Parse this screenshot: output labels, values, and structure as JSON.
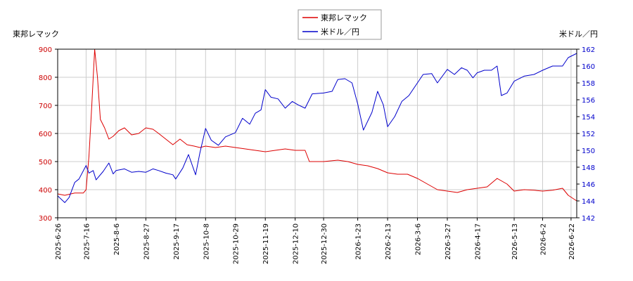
{
  "chart_data": {
    "type": "line",
    "legend_position": "top-center",
    "grid": true,
    "left_axis_label": "東邦レマック",
    "right_axis_label": "米ドル／円",
    "left_ylim": [
      300,
      900
    ],
    "right_ylim": [
      142,
      162
    ],
    "left_ticks": [
      "300",
      "400",
      "500",
      "600",
      "700",
      "800",
      "900"
    ],
    "right_ticks": [
      "142",
      "144",
      "146",
      "148",
      "150",
      "152",
      "154",
      "156",
      "158",
      "160",
      "162"
    ],
    "x_ticks": [
      "2025-6-26",
      "2025-7-16",
      "2025-8-6",
      "2025-8-27",
      "2025-9-17",
      "2025-10-8",
      "2025-10-29",
      "2025-11-19",
      "2025-12-10",
      "2025-12-30",
      "2026-1-23",
      "2026-2-13",
      "2026-3-6",
      "2026-3-27",
      "2026-4-17",
      "2026-5-13",
      "2026-6-2",
      "2026-6-22"
    ],
    "colors": {
      "stock": "#dd0000",
      "fx": "#0000cc",
      "grid": "#cccccc"
    },
    "series": [
      {
        "name": "東邦レマック",
        "axis": "left",
        "points": [
          [
            "2025-6-26",
            385
          ],
          [
            "2025-7-1",
            380
          ],
          [
            "2025-7-8",
            388
          ],
          [
            "2025-7-14",
            388
          ],
          [
            "2025-7-16",
            400
          ],
          [
            "2025-7-18",
            520
          ],
          [
            "2025-7-20",
            700
          ],
          [
            "2025-7-22",
            900
          ],
          [
            "2025-7-24",
            800
          ],
          [
            "2025-7-26",
            650
          ],
          [
            "2025-7-29",
            620
          ],
          [
            "2025-8-1",
            580
          ],
          [
            "2025-8-4",
            590
          ],
          [
            "2025-8-8",
            610
          ],
          [
            "2025-8-12",
            620
          ],
          [
            "2025-8-17",
            595
          ],
          [
            "2025-8-22",
            600
          ],
          [
            "2025-8-27",
            620
          ],
          [
            "2025-9-1",
            615
          ],
          [
            "2025-9-5",
            600
          ],
          [
            "2025-9-10",
            580
          ],
          [
            "2025-9-15",
            560
          ],
          [
            "2025-9-20",
            580
          ],
          [
            "2025-9-25",
            560
          ],
          [
            "2025-9-30",
            555
          ],
          [
            "2025-10-4",
            550
          ],
          [
            "2025-10-8",
            555
          ],
          [
            "2025-10-15",
            550
          ],
          [
            "2025-10-22",
            555
          ],
          [
            "2025-10-29",
            550
          ],
          [
            "2025-11-5",
            545
          ],
          [
            "2025-11-12",
            540
          ],
          [
            "2025-11-19",
            535
          ],
          [
            "2025-11-26",
            540
          ],
          [
            "2025-12-3",
            545
          ],
          [
            "2025-12-10",
            540
          ],
          [
            "2025-12-17",
            540
          ],
          [
            "2025-12-20",
            500
          ],
          [
            "2025-12-30",
            500
          ],
          [
            "2026-1-9",
            505
          ],
          [
            "2026-1-16",
            500
          ],
          [
            "2026-1-23",
            490
          ],
          [
            "2026-1-30",
            485
          ],
          [
            "2026-2-6",
            475
          ],
          [
            "2026-2-13",
            460
          ],
          [
            "2026-2-20",
            455
          ],
          [
            "2026-2-27",
            455
          ],
          [
            "2026-3-6",
            440
          ],
          [
            "2026-3-13",
            420
          ],
          [
            "2026-3-20",
            400
          ],
          [
            "2026-3-27",
            395
          ],
          [
            "2026-4-3",
            390
          ],
          [
            "2026-4-10",
            400
          ],
          [
            "2026-4-17",
            405
          ],
          [
            "2026-4-24",
            410
          ],
          [
            "2026-5-1",
            440
          ],
          [
            "2026-5-8",
            420
          ],
          [
            "2026-5-13",
            395
          ],
          [
            "2026-5-20",
            400
          ],
          [
            "2026-5-27",
            398
          ],
          [
            "2026-6-2",
            395
          ],
          [
            "2026-6-9",
            398
          ],
          [
            "2026-6-16",
            405
          ],
          [
            "2026-6-20",
            380
          ],
          [
            "2026-6-26",
            360
          ]
        ]
      },
      {
        "name": "米ドル／円",
        "axis": "right",
        "points": [
          [
            "2025-6-26",
            144.6
          ],
          [
            "2025-7-1",
            143.8
          ],
          [
            "2025-7-4",
            144.4
          ],
          [
            "2025-7-8",
            146.2
          ],
          [
            "2025-7-11",
            146.6
          ],
          [
            "2025-7-16",
            148.2
          ],
          [
            "2025-7-18",
            147.3
          ],
          [
            "2025-7-21",
            147.6
          ],
          [
            "2025-7-23",
            146.5
          ],
          [
            "2025-7-28",
            147.5
          ],
          [
            "2025-8-1",
            148.5
          ],
          [
            "2025-8-4",
            147.2
          ],
          [
            "2025-8-6",
            147.6
          ],
          [
            "2025-8-12",
            147.8
          ],
          [
            "2025-8-17",
            147.4
          ],
          [
            "2025-8-22",
            147.5
          ],
          [
            "2025-8-27",
            147.4
          ],
          [
            "2025-9-1",
            147.8
          ],
          [
            "2025-9-5",
            147.6
          ],
          [
            "2025-9-10",
            147.3
          ],
          [
            "2025-9-15",
            147.1
          ],
          [
            "2025-9-17",
            146.6
          ],
          [
            "2025-9-22",
            147.9
          ],
          [
            "2025-9-26",
            149.5
          ],
          [
            "2025-10-1",
            147.1
          ],
          [
            "2025-10-4",
            149.7
          ],
          [
            "2025-10-8",
            152.6
          ],
          [
            "2025-10-12",
            151.2
          ],
          [
            "2025-10-17",
            150.6
          ],
          [
            "2025-10-22",
            151.6
          ],
          [
            "2025-10-29",
            152.1
          ],
          [
            "2025-11-3",
            153.8
          ],
          [
            "2025-11-8",
            153.1
          ],
          [
            "2025-11-12",
            154.4
          ],
          [
            "2025-11-16",
            154.8
          ],
          [
            "2025-11-19",
            157.2
          ],
          [
            "2025-11-23",
            156.3
          ],
          [
            "2025-11-28",
            156.1
          ],
          [
            "2025-12-3",
            155.0
          ],
          [
            "2025-12-8",
            155.8
          ],
          [
            "2025-12-12",
            155.4
          ],
          [
            "2025-12-17",
            155.0
          ],
          [
            "2025-12-22",
            156.7
          ],
          [
            "2025-12-30",
            156.8
          ],
          [
            "2026-1-5",
            157.0
          ],
          [
            "2026-1-9",
            158.4
          ],
          [
            "2026-1-14",
            158.5
          ],
          [
            "2026-1-19",
            158.0
          ],
          [
            "2026-1-23",
            155.5
          ],
          [
            "2026-1-27",
            152.4
          ],
          [
            "2026-2-2",
            154.5
          ],
          [
            "2026-2-6",
            157.0
          ],
          [
            "2026-2-10",
            155.4
          ],
          [
            "2026-2-13",
            152.8
          ],
          [
            "2026-2-18",
            154.0
          ],
          [
            "2026-2-23",
            155.8
          ],
          [
            "2026-2-28",
            156.5
          ],
          [
            "2026-3-6",
            158.0
          ],
          [
            "2026-3-10",
            159.0
          ],
          [
            "2026-3-16",
            159.1
          ],
          [
            "2026-3-20",
            158.0
          ],
          [
            "2026-3-27",
            159.6
          ],
          [
            "2026-4-1",
            159.0
          ],
          [
            "2026-4-6",
            159.8
          ],
          [
            "2026-4-10",
            159.5
          ],
          [
            "2026-4-14",
            158.6
          ],
          [
            "2026-4-17",
            159.2
          ],
          [
            "2026-4-22",
            159.5
          ],
          [
            "2026-4-27",
            159.5
          ],
          [
            "2026-5-1",
            160.0
          ],
          [
            "2026-5-4",
            156.5
          ],
          [
            "2026-5-8",
            156.8
          ],
          [
            "2026-5-13",
            158.2
          ],
          [
            "2026-5-20",
            158.8
          ],
          [
            "2026-5-27",
            159.0
          ],
          [
            "2026-6-2",
            159.5
          ],
          [
            "2026-6-9",
            160.0
          ],
          [
            "2026-6-16",
            160.0
          ],
          [
            "2026-6-20",
            161.0
          ],
          [
            "2026-6-26",
            161.5
          ]
        ]
      }
    ]
  }
}
